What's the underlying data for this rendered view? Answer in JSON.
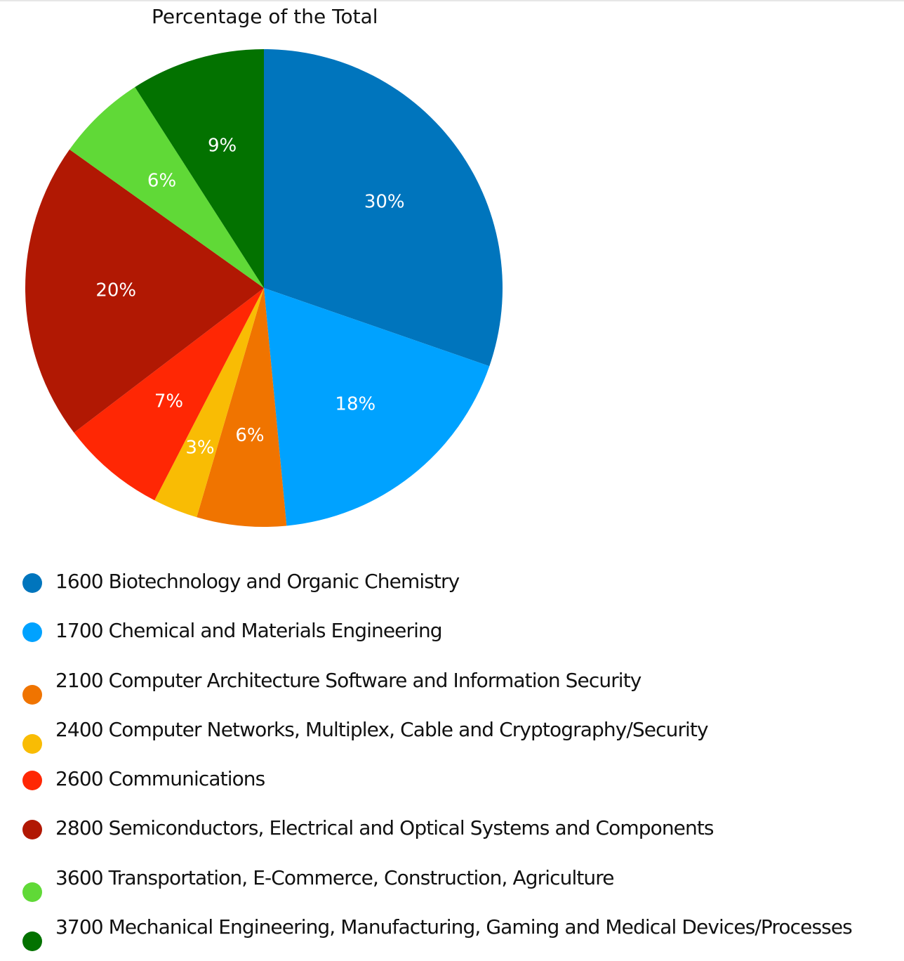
{
  "chart_data": {
    "type": "pie",
    "title": "Percentage of the Total",
    "categories": [
      "1600 Biotechnology and Organic Chemistry",
      "1700 Chemical and Materials Engineering",
      "2100 Computer Architecture Software and Information Security",
      "2400 Computer Networks, Multiplex, Cable and Cryptography/Security",
      "2600 Communications",
      "2800 Semiconductors, Electrical and Optical Systems and Components",
      "3600 Transportation, E-Commerce, Construction, Agriculture",
      "3700 Mechanical Engineering, Manufacturing, Gaming and Medical Devices/Processes"
    ],
    "values": [
      30,
      18,
      6,
      3,
      7,
      20,
      6,
      9
    ],
    "data_labels": [
      "30%",
      "18%",
      "6%",
      "3%",
      "7%",
      "20%",
      "6%",
      "9%"
    ],
    "colors": [
      "#0075bd",
      "#00a2ff",
      "#f07400",
      "#f9bc04",
      "#ff2704",
      "#b11803",
      "#60d937",
      "#037200"
    ],
    "legend_position": "bottom"
  }
}
